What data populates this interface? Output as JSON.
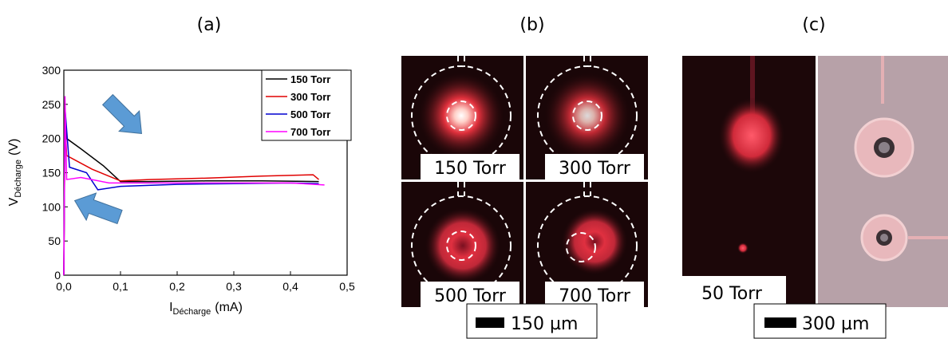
{
  "chart_data": {
    "type": "line",
    "xlabel": {
      "main": "I",
      "sub": "Décharge",
      "unit": "(mA)"
    },
    "ylabel": {
      "main": "V",
      "sub": "Décharge",
      "unit": "(V)"
    },
    "xlim": [
      0,
      0.5
    ],
    "ylim": [
      0,
      300
    ],
    "xticks": [
      {
        "value": 0,
        "label": "0,0"
      },
      {
        "value": 0.1,
        "label": "0,1"
      },
      {
        "value": 0.2,
        "label": "0,2"
      },
      {
        "value": 0.3,
        "label": "0,3"
      },
      {
        "value": 0.4,
        "label": "0,4"
      },
      {
        "value": 0.5,
        "label": "0,5"
      }
    ],
    "yticks": [
      0,
      50,
      100,
      150,
      200,
      250,
      300
    ],
    "legend": "top-right",
    "series": [
      {
        "name": "150 Torr",
        "color": "#000000",
        "x": [
          0,
          0.002,
          0.005,
          0.03,
          0.07,
          0.1,
          0.15,
          0.25,
          0.35,
          0.45
        ],
        "values": [
          0,
          240,
          200,
          185,
          160,
          137,
          137,
          138,
          138,
          137
        ]
      },
      {
        "name": "300 Torr",
        "color": "#e00000",
        "x": [
          0,
          0.002,
          0.005,
          0.05,
          0.1,
          0.15,
          0.25,
          0.35,
          0.44,
          0.45
        ],
        "values": [
          0,
          225,
          175,
          155,
          138,
          140,
          142,
          145,
          147,
          140
        ]
      },
      {
        "name": "500 Torr",
        "color": "#0000d0",
        "x": [
          0,
          0.002,
          0.01,
          0.04,
          0.06,
          0.1,
          0.2,
          0.3,
          0.4,
          0.45
        ],
        "values": [
          0,
          245,
          158,
          150,
          125,
          130,
          133,
          134,
          135,
          134
        ]
      },
      {
        "name": "700 Torr",
        "color": "#ff00ff",
        "x": [
          0,
          0.002,
          0.005,
          0.03,
          0.08,
          0.14,
          0.2,
          0.3,
          0.4,
          0.46
        ],
        "values": [
          0,
          262,
          140,
          143,
          135,
          135,
          135,
          135,
          135,
          132
        ]
      }
    ]
  },
  "panels": {
    "a": "(a)",
    "b": "(b)",
    "c": "(c)"
  },
  "images_b": {
    "labels": [
      "150 Torr",
      "300 Torr",
      "500 Torr",
      "700 Torr"
    ],
    "scale_bar": "150 µm"
  },
  "images_c": {
    "label": "50 Torr",
    "scale_bar": "300 µm"
  }
}
